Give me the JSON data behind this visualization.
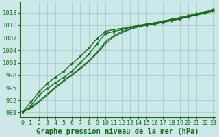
{
  "title": "Graphe pression niveau de la mer (hPa)",
  "xlabel_ticks": [
    0,
    1,
    2,
    3,
    4,
    5,
    6,
    7,
    8,
    9,
    10,
    11,
    12,
    13,
    14,
    15,
    16,
    17,
    18,
    19,
    20,
    21,
    22,
    23
  ],
  "yticks": [
    989,
    992,
    995,
    998,
    1001,
    1004,
    1007,
    1010,
    1013
  ],
  "ylim": [
    988.0,
    1015.5
  ],
  "xlim": [
    -0.3,
    23.3
  ],
  "bg_color": "#cce8e8",
  "grid_color": "#aacccc",
  "line_color": "#1a6b1a",
  "marker_color": "#1a6b1a",
  "series": [
    {
      "y": [
        989.2,
        990.5,
        993.2,
        994.8,
        996.2,
        997.5,
        999.0,
        1001.0,
        1003.0,
        1005.5,
        1008.0,
        1008.5,
        1009.0,
        1009.5,
        1009.8,
        1010.0,
        1010.3,
        1010.7,
        1011.1,
        1011.5,
        1012.0,
        1012.5,
        1013.0,
        1013.5
      ],
      "marker": true,
      "lw": 1.0
    },
    {
      "y": [
        989.2,
        991.5,
        994.0,
        996.0,
        997.5,
        999.0,
        1000.8,
        1002.5,
        1004.5,
        1006.8,
        1008.5,
        1009.0,
        1009.2,
        1009.5,
        1010.0,
        1010.3,
        1010.6,
        1011.0,
        1011.4,
        1011.8,
        1012.3,
        1012.7,
        1013.2,
        1013.8
      ],
      "marker": true,
      "lw": 1.0
    },
    {
      "y": [
        989.2,
        990.2,
        991.8,
        993.5,
        995.2,
        996.8,
        998.2,
        999.8,
        1001.5,
        1003.5,
        1006.0,
        1007.5,
        1008.5,
        1009.2,
        1009.8,
        1010.2,
        1010.6,
        1011.0,
        1011.4,
        1011.8,
        1012.2,
        1012.6,
        1013.0,
        1013.5
      ],
      "marker": false,
      "lw": 0.9
    },
    {
      "y": [
        989.2,
        990.0,
        991.5,
        993.2,
        995.0,
        996.5,
        998.0,
        999.5,
        1001.2,
        1003.2,
        1005.5,
        1007.2,
        1008.2,
        1009.0,
        1009.6,
        1010.0,
        1010.4,
        1010.8,
        1011.2,
        1011.6,
        1012.0,
        1012.4,
        1012.8,
        1013.3
      ],
      "marker": false,
      "lw": 0.9
    }
  ],
  "title_color": "#1a6b1a",
  "tick_fontsize": 6,
  "axis_label_fontsize": 7.5
}
